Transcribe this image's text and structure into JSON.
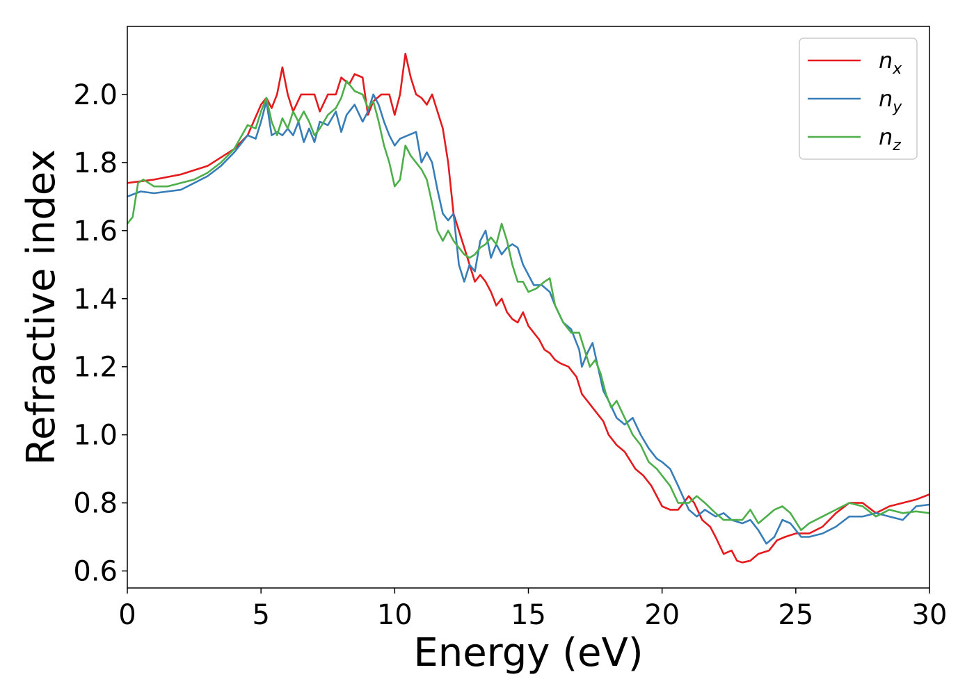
{
  "chart_data": {
    "type": "line",
    "title": "",
    "xlabel": "Energy (eV)",
    "ylabel": "Refractive index",
    "xlim": [
      0,
      30
    ],
    "ylim": [
      0.55,
      2.2
    ],
    "xticks": [
      0,
      5,
      10,
      15,
      20,
      25,
      30
    ],
    "xtick_labels": [
      "0",
      "5",
      "10",
      "15",
      "20",
      "25",
      "30"
    ],
    "yticks": [
      0.6,
      0.8,
      1.0,
      1.2,
      1.4,
      1.6,
      1.8,
      2.0
    ],
    "ytick_labels": [
      "0.6",
      "0.8",
      "1.0",
      "1.2",
      "1.4",
      "1.6",
      "1.8",
      "2.0"
    ],
    "grid": false,
    "legend_position": "top-right",
    "series": [
      {
        "name": "n_x",
        "label_base": "n",
        "label_sub": "x",
        "color": "#e41a1c",
        "points": [
          [
            0,
            1.74
          ],
          [
            0.5,
            1.745
          ],
          [
            1,
            1.75
          ],
          [
            2,
            1.765
          ],
          [
            3,
            1.79
          ],
          [
            4,
            1.84
          ],
          [
            4.5,
            1.88
          ],
          [
            5,
            1.97
          ],
          [
            5.2,
            1.99
          ],
          [
            5.4,
            1.96
          ],
          [
            5.6,
            2.0
          ],
          [
            5.8,
            2.08
          ],
          [
            6,
            2.0
          ],
          [
            6.2,
            1.95
          ],
          [
            6.5,
            2.0
          ],
          [
            7,
            2.0
          ],
          [
            7.2,
            1.95
          ],
          [
            7.5,
            2.0
          ],
          [
            7.8,
            2.0
          ],
          [
            8,
            2.05
          ],
          [
            8.3,
            2.03
          ],
          [
            8.5,
            2.06
          ],
          [
            8.8,
            2.05
          ],
          [
            9,
            1.94
          ],
          [
            9.2,
            1.98
          ],
          [
            9.5,
            2.0
          ],
          [
            9.8,
            2.0
          ],
          [
            10,
            1.94
          ],
          [
            10.2,
            2.0
          ],
          [
            10.4,
            2.12
          ],
          [
            10.6,
            2.05
          ],
          [
            10.8,
            2.0
          ],
          [
            11,
            1.99
          ],
          [
            11.2,
            1.97
          ],
          [
            11.4,
            2.0
          ],
          [
            11.6,
            1.95
          ],
          [
            11.8,
            1.9
          ],
          [
            12,
            1.8
          ],
          [
            12.2,
            1.65
          ],
          [
            12.4,
            1.6
          ],
          [
            12.6,
            1.55
          ],
          [
            12.8,
            1.5
          ],
          [
            13,
            1.45
          ],
          [
            13.2,
            1.47
          ],
          [
            13.4,
            1.45
          ],
          [
            13.6,
            1.42
          ],
          [
            13.8,
            1.38
          ],
          [
            14,
            1.4
          ],
          [
            14.2,
            1.36
          ],
          [
            14.4,
            1.34
          ],
          [
            14.6,
            1.33
          ],
          [
            14.8,
            1.36
          ],
          [
            15,
            1.32
          ],
          [
            15.2,
            1.3
          ],
          [
            15.4,
            1.28
          ],
          [
            15.6,
            1.25
          ],
          [
            15.8,
            1.24
          ],
          [
            16,
            1.22
          ],
          [
            16.2,
            1.21
          ],
          [
            16.5,
            1.2
          ],
          [
            16.8,
            1.17
          ],
          [
            17,
            1.12
          ],
          [
            17.2,
            1.1
          ],
          [
            17.5,
            1.07
          ],
          [
            17.8,
            1.04
          ],
          [
            18,
            1.0
          ],
          [
            18.3,
            0.97
          ],
          [
            18.6,
            0.95
          ],
          [
            19,
            0.9
          ],
          [
            19.3,
            0.88
          ],
          [
            19.6,
            0.85
          ],
          [
            20,
            0.79
          ],
          [
            20.3,
            0.78
          ],
          [
            20.6,
            0.78
          ],
          [
            21,
            0.82
          ],
          [
            21.2,
            0.8
          ],
          [
            21.5,
            0.75
          ],
          [
            21.8,
            0.73
          ],
          [
            22,
            0.7
          ],
          [
            22.3,
            0.65
          ],
          [
            22.6,
            0.66
          ],
          [
            22.8,
            0.63
          ],
          [
            23,
            0.625
          ],
          [
            23.3,
            0.63
          ],
          [
            23.6,
            0.65
          ],
          [
            24,
            0.66
          ],
          [
            24.3,
            0.69
          ],
          [
            24.6,
            0.7
          ],
          [
            25,
            0.71
          ],
          [
            25.5,
            0.71
          ],
          [
            26,
            0.73
          ],
          [
            26.5,
            0.77
          ],
          [
            27,
            0.8
          ],
          [
            27.5,
            0.8
          ],
          [
            28,
            0.77
          ],
          [
            28.5,
            0.79
          ],
          [
            29,
            0.8
          ],
          [
            29.5,
            0.81
          ],
          [
            30,
            0.825
          ]
        ]
      },
      {
        "name": "n_y",
        "label_base": "n",
        "label_sub": "y",
        "color": "#377eb8",
        "points": [
          [
            0,
            1.7
          ],
          [
            0.5,
            1.715
          ],
          [
            1,
            1.71
          ],
          [
            1.5,
            1.715
          ],
          [
            2,
            1.72
          ],
          [
            2.5,
            1.74
          ],
          [
            3,
            1.76
          ],
          [
            3.5,
            1.79
          ],
          [
            4,
            1.83
          ],
          [
            4.5,
            1.88
          ],
          [
            4.8,
            1.87
          ],
          [
            5,
            1.92
          ],
          [
            5.2,
            1.98
          ],
          [
            5.4,
            1.88
          ],
          [
            5.6,
            1.89
          ],
          [
            5.8,
            1.88
          ],
          [
            6,
            1.9
          ],
          [
            6.2,
            1.88
          ],
          [
            6.4,
            1.92
          ],
          [
            6.6,
            1.86
          ],
          [
            6.8,
            1.9
          ],
          [
            7,
            1.86
          ],
          [
            7.2,
            1.92
          ],
          [
            7.5,
            1.91
          ],
          [
            7.8,
            1.95
          ],
          [
            8,
            1.89
          ],
          [
            8.2,
            1.94
          ],
          [
            8.5,
            1.97
          ],
          [
            8.8,
            1.92
          ],
          [
            9,
            1.95
          ],
          [
            9.2,
            2.0
          ],
          [
            9.4,
            1.97
          ],
          [
            9.6,
            1.92
          ],
          [
            9.8,
            1.88
          ],
          [
            10,
            1.85
          ],
          [
            10.2,
            1.87
          ],
          [
            10.5,
            1.88
          ],
          [
            10.8,
            1.89
          ],
          [
            11,
            1.8
          ],
          [
            11.2,
            1.83
          ],
          [
            11.4,
            1.8
          ],
          [
            11.6,
            1.72
          ],
          [
            11.8,
            1.65
          ],
          [
            12,
            1.63
          ],
          [
            12.2,
            1.65
          ],
          [
            12.4,
            1.5
          ],
          [
            12.6,
            1.45
          ],
          [
            12.8,
            1.5
          ],
          [
            13,
            1.48
          ],
          [
            13.2,
            1.57
          ],
          [
            13.4,
            1.6
          ],
          [
            13.6,
            1.52
          ],
          [
            13.8,
            1.56
          ],
          [
            14,
            1.53
          ],
          [
            14.2,
            1.55
          ],
          [
            14.4,
            1.56
          ],
          [
            14.6,
            1.55
          ],
          [
            14.8,
            1.5
          ],
          [
            15,
            1.47
          ],
          [
            15.2,
            1.44
          ],
          [
            15.5,
            1.44
          ],
          [
            15.8,
            1.42
          ],
          [
            16,
            1.38
          ],
          [
            16.3,
            1.33
          ],
          [
            16.6,
            1.31
          ],
          [
            16.9,
            1.25
          ],
          [
            17,
            1.2
          ],
          [
            17.2,
            1.24
          ],
          [
            17.4,
            1.27
          ],
          [
            17.6,
            1.2
          ],
          [
            17.8,
            1.13
          ],
          [
            18,
            1.1
          ],
          [
            18.3,
            1.05
          ],
          [
            18.6,
            1.03
          ],
          [
            18.9,
            1.05
          ],
          [
            19.2,
            1.0
          ],
          [
            19.5,
            0.96
          ],
          [
            19.8,
            0.93
          ],
          [
            20,
            0.92
          ],
          [
            20.3,
            0.9
          ],
          [
            20.6,
            0.85
          ],
          [
            21,
            0.78
          ],
          [
            21.3,
            0.76
          ],
          [
            21.6,
            0.78
          ],
          [
            22,
            0.76
          ],
          [
            22.3,
            0.77
          ],
          [
            22.6,
            0.75
          ],
          [
            23,
            0.74
          ],
          [
            23.3,
            0.75
          ],
          [
            23.6,
            0.72
          ],
          [
            23.9,
            0.68
          ],
          [
            24.2,
            0.7
          ],
          [
            24.5,
            0.75
          ],
          [
            24.8,
            0.74
          ],
          [
            25.2,
            0.7
          ],
          [
            25.5,
            0.7
          ],
          [
            26,
            0.71
          ],
          [
            26.5,
            0.73
          ],
          [
            27,
            0.76
          ],
          [
            27.5,
            0.76
          ],
          [
            28,
            0.77
          ],
          [
            28.5,
            0.76
          ],
          [
            29,
            0.75
          ],
          [
            29.5,
            0.79
          ],
          [
            30,
            0.795
          ]
        ]
      },
      {
        "name": "n_z",
        "label_base": "n",
        "label_sub": "z",
        "color": "#4daf4a",
        "points": [
          [
            0,
            1.62
          ],
          [
            0.2,
            1.64
          ],
          [
            0.4,
            1.74
          ],
          [
            0.6,
            1.75
          ],
          [
            0.8,
            1.74
          ],
          [
            1,
            1.73
          ],
          [
            1.5,
            1.73
          ],
          [
            2,
            1.74
          ],
          [
            2.5,
            1.75
          ],
          [
            3,
            1.77
          ],
          [
            3.5,
            1.8
          ],
          [
            4,
            1.84
          ],
          [
            4.5,
            1.91
          ],
          [
            4.8,
            1.9
          ],
          [
            5,
            1.95
          ],
          [
            5.2,
            1.99
          ],
          [
            5.4,
            1.92
          ],
          [
            5.6,
            1.88
          ],
          [
            5.8,
            1.93
          ],
          [
            6,
            1.9
          ],
          [
            6.2,
            1.95
          ],
          [
            6.4,
            1.92
          ],
          [
            6.6,
            1.95
          ],
          [
            6.8,
            1.92
          ],
          [
            7,
            1.88
          ],
          [
            7.2,
            1.9
          ],
          [
            7.5,
            1.94
          ],
          [
            7.8,
            1.96
          ],
          [
            8,
            1.99
          ],
          [
            8.2,
            2.04
          ],
          [
            8.5,
            2.01
          ],
          [
            8.8,
            2.0
          ],
          [
            9,
            1.96
          ],
          [
            9.2,
            1.98
          ],
          [
            9.4,
            1.92
          ],
          [
            9.6,
            1.85
          ],
          [
            9.8,
            1.8
          ],
          [
            10,
            1.73
          ],
          [
            10.2,
            1.75
          ],
          [
            10.4,
            1.85
          ],
          [
            10.6,
            1.82
          ],
          [
            10.8,
            1.8
          ],
          [
            11,
            1.78
          ],
          [
            11.2,
            1.75
          ],
          [
            11.4,
            1.68
          ],
          [
            11.6,
            1.6
          ],
          [
            11.8,
            1.57
          ],
          [
            12,
            1.6
          ],
          [
            12.2,
            1.57
          ],
          [
            12.4,
            1.55
          ],
          [
            12.6,
            1.53
          ],
          [
            12.8,
            1.52
          ],
          [
            13,
            1.53
          ],
          [
            13.2,
            1.55
          ],
          [
            13.4,
            1.56
          ],
          [
            13.6,
            1.58
          ],
          [
            13.8,
            1.56
          ],
          [
            14,
            1.62
          ],
          [
            14.2,
            1.57
          ],
          [
            14.4,
            1.5
          ],
          [
            14.6,
            1.45
          ],
          [
            14.8,
            1.45
          ],
          [
            15,
            1.42
          ],
          [
            15.3,
            1.43
          ],
          [
            15.6,
            1.45
          ],
          [
            15.8,
            1.46
          ],
          [
            16,
            1.38
          ],
          [
            16.3,
            1.33
          ],
          [
            16.6,
            1.3
          ],
          [
            16.9,
            1.3
          ],
          [
            17.1,
            1.25
          ],
          [
            17.3,
            1.2
          ],
          [
            17.5,
            1.22
          ],
          [
            17.7,
            1.18
          ],
          [
            17.9,
            1.12
          ],
          [
            18.1,
            1.08
          ],
          [
            18.3,
            1.1
          ],
          [
            18.6,
            1.05
          ],
          [
            18.9,
            1.0
          ],
          [
            19.2,
            0.97
          ],
          [
            19.5,
            0.92
          ],
          [
            19.8,
            0.9
          ],
          [
            20,
            0.88
          ],
          [
            20.3,
            0.85
          ],
          [
            20.6,
            0.8
          ],
          [
            21,
            0.8
          ],
          [
            21.3,
            0.82
          ],
          [
            21.6,
            0.8
          ],
          [
            22,
            0.77
          ],
          [
            22.3,
            0.75
          ],
          [
            22.6,
            0.75
          ],
          [
            23,
            0.75
          ],
          [
            23.3,
            0.78
          ],
          [
            23.6,
            0.74
          ],
          [
            23.9,
            0.76
          ],
          [
            24.2,
            0.78
          ],
          [
            24.5,
            0.79
          ],
          [
            24.8,
            0.77
          ],
          [
            25.2,
            0.72
          ],
          [
            25.5,
            0.74
          ],
          [
            26,
            0.76
          ],
          [
            26.5,
            0.78
          ],
          [
            27,
            0.8
          ],
          [
            27.5,
            0.79
          ],
          [
            28,
            0.76
          ],
          [
            28.5,
            0.78
          ],
          [
            29,
            0.77
          ],
          [
            29.5,
            0.775
          ],
          [
            30,
            0.77
          ]
        ]
      }
    ]
  }
}
